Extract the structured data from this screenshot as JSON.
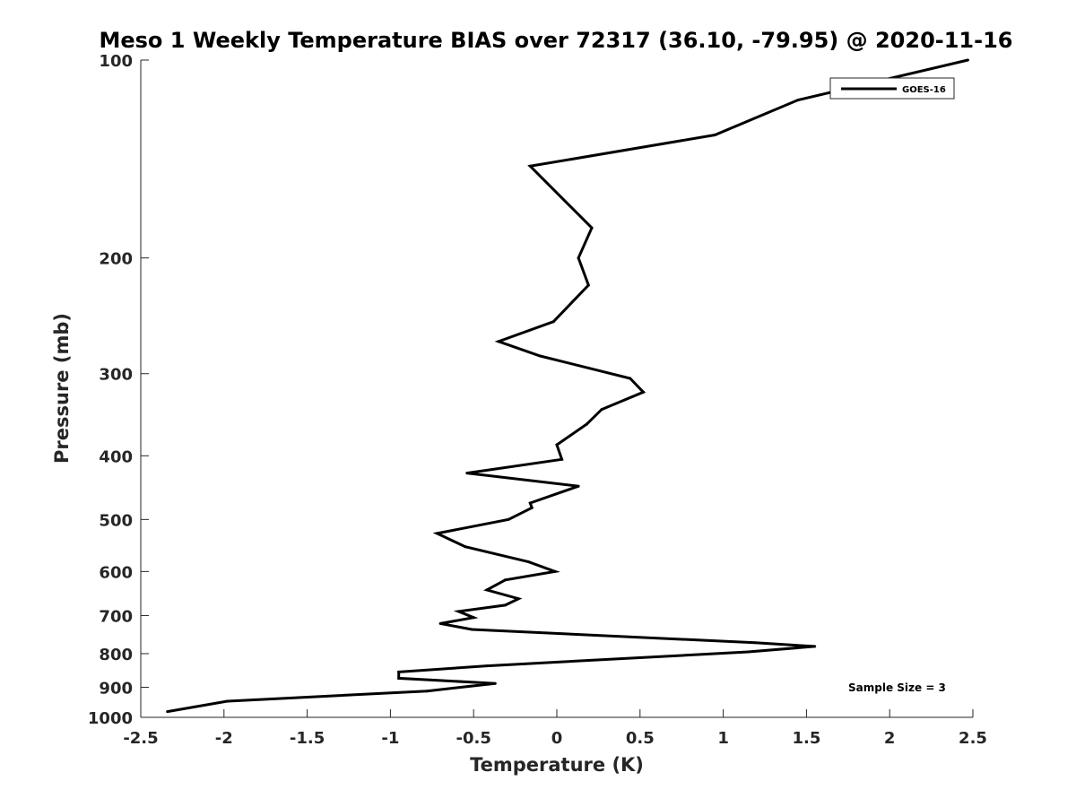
{
  "chart_data": {
    "type": "line",
    "title": "Meso 1 Weekly Temperature BIAS over 72317 (36.10, -79.95) @ 2020-11-16",
    "xlabel": "Temperature (K)",
    "ylabel": "Pressure (mb)",
    "xlim": [
      -2.5,
      2.5
    ],
    "ylim": [
      1000,
      100
    ],
    "y_scale": "log",
    "y_reversed": true,
    "grid": false,
    "legend_position": "top-right",
    "x_ticks": [
      -2.5,
      -2,
      -1.5,
      -1,
      -0.5,
      0,
      0.5,
      1,
      1.5,
      2,
      2.5
    ],
    "x_tick_labels": [
      "-2.5",
      "-2",
      "-1.5",
      "-1",
      "-0.5",
      "0",
      "0.5",
      "1",
      "1.5",
      "2",
      "2.5"
    ],
    "y_ticks": [
      100,
      200,
      300,
      400,
      500,
      600,
      700,
      800,
      900,
      1000
    ],
    "y_tick_labels": [
      "100",
      "200",
      "300",
      "400",
      "500",
      "600",
      "700",
      "800",
      "900",
      "1000"
    ],
    "series": [
      {
        "name": "GOES-16",
        "color": "#000000",
        "points": [
          [
            2.47,
            100
          ],
          [
            1.45,
            115
          ],
          [
            0.95,
            130
          ],
          [
            -0.16,
            145
          ],
          [
            0.21,
            180
          ],
          [
            0.13,
            200
          ],
          [
            0.19,
            220
          ],
          [
            -0.02,
            250
          ],
          [
            -0.35,
            268
          ],
          [
            -0.1,
            282
          ],
          [
            0.44,
            305
          ],
          [
            0.52,
            320
          ],
          [
            0.27,
            340
          ],
          [
            0.18,
            358
          ],
          [
            0.0,
            385
          ],
          [
            0.03,
            405
          ],
          [
            -0.54,
            425
          ],
          [
            0.13,
            445
          ],
          [
            -0.16,
            472
          ],
          [
            -0.15,
            480
          ],
          [
            -0.29,
            500
          ],
          [
            -0.72,
            525
          ],
          [
            -0.55,
            550
          ],
          [
            -0.17,
            580
          ],
          [
            -0.01,
            600
          ],
          [
            -0.31,
            618
          ],
          [
            -0.42,
            640
          ],
          [
            -0.23,
            660
          ],
          [
            -0.31,
            675
          ],
          [
            -0.59,
            690
          ],
          [
            -0.5,
            705
          ],
          [
            -0.7,
            720
          ],
          [
            -0.51,
            735
          ],
          [
            1.19,
            770
          ],
          [
            1.55,
            780
          ],
          [
            1.15,
            795
          ],
          [
            -0.42,
            835
          ],
          [
            -0.95,
            853
          ],
          [
            -0.95,
            872
          ],
          [
            -0.37,
            888
          ],
          [
            -0.78,
            912
          ],
          [
            -1.98,
            945
          ],
          [
            -2.34,
            980
          ]
        ]
      }
    ],
    "annotations": [
      {
        "text": "Sample Size = 3"
      }
    ]
  }
}
